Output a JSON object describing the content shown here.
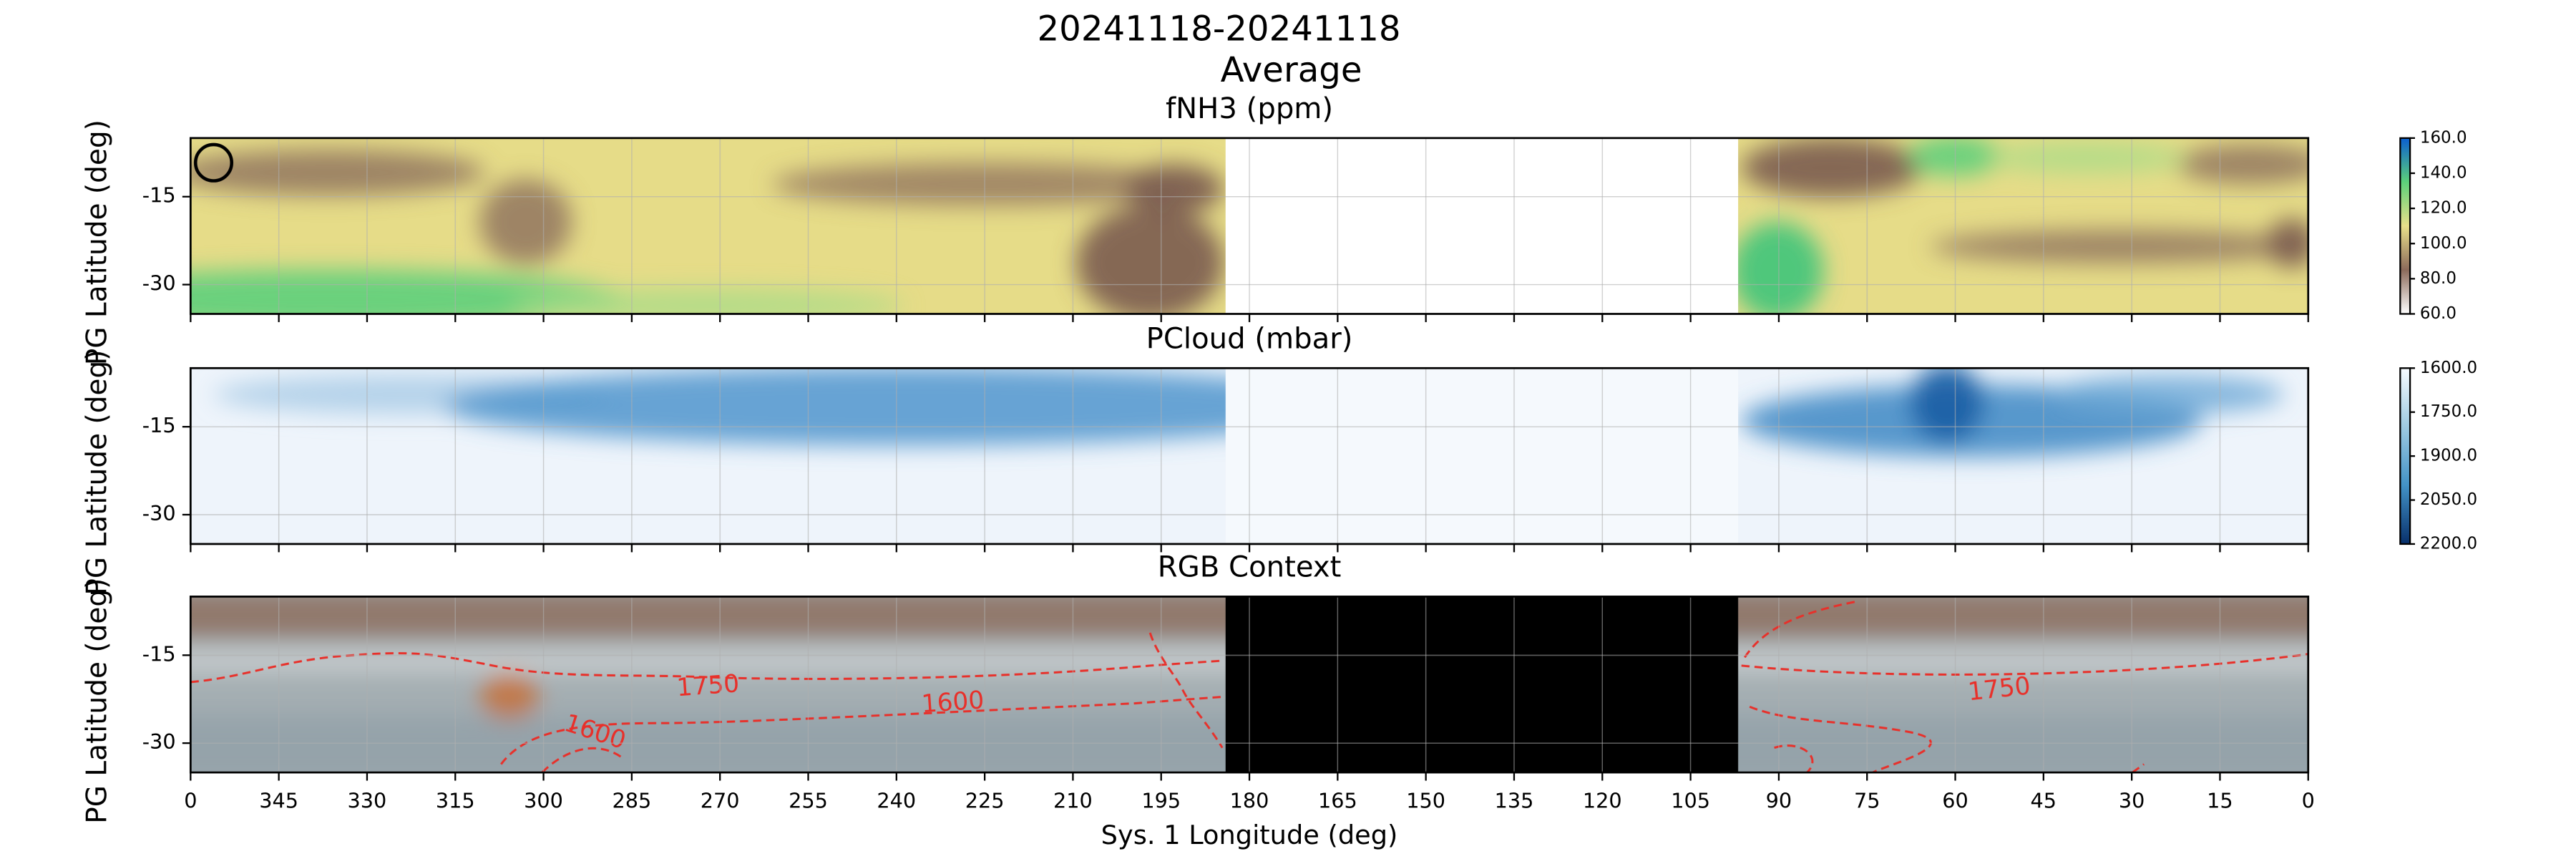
{
  "suptitle": [
    "20241118-20241118",
    "Average"
  ],
  "chart_data": [
    {
      "type": "heatmap",
      "title": "fNH3 (ppm)",
      "y_label": "PG Latitude (deg)",
      "xlim": [
        360,
        0
      ],
      "xticks": [
        {
          "value": 360,
          "label": "0"
        },
        345,
        330,
        315,
        300,
        285,
        270,
        255,
        240,
        225,
        210,
        195,
        180,
        165,
        150,
        135,
        120,
        105,
        90,
        75,
        60,
        45,
        30,
        15,
        0
      ],
      "ylim": [
        -35,
        -5
      ],
      "yticks": [
        -15,
        -30
      ],
      "grid": true,
      "colorbar": {
        "lim": [
          60,
          160
        ],
        "ticks": [
          {
            "value": 60,
            "label": "60.0"
          },
          {
            "value": 80,
            "label": "80.0"
          },
          {
            "value": 100,
            "label": "100.0"
          },
          {
            "value": 120,
            "label": "120.0"
          },
          {
            "value": 140,
            "label": "140.0"
          },
          {
            "value": 160,
            "label": "160.0"
          }
        ],
        "colors": [
          "#ffffff",
          "#8c6a5a",
          "#e8e08a",
          "#5cd07a",
          "#0b5fd0"
        ]
      }
    },
    {
      "type": "heatmap",
      "title": "PCloud (mbar)",
      "y_label": "PG Latitude (deg)",
      "xlim": [
        360,
        0
      ],
      "xticks": [
        {
          "value": 360,
          "label": "0"
        },
        345,
        330,
        315,
        300,
        285,
        270,
        255,
        240,
        225,
        210,
        195,
        180,
        165,
        150,
        135,
        120,
        105,
        90,
        75,
        60,
        45,
        30,
        15,
        0
      ],
      "ylim": [
        -35,
        -5
      ],
      "yticks": [
        -15,
        -30
      ],
      "grid": true,
      "colorbar": {
        "lim": [
          1600,
          2200
        ],
        "reversed": true,
        "ticks": [
          {
            "value": 1600,
            "label": "1600.0"
          },
          {
            "value": 1750,
            "label": "1750.0"
          },
          {
            "value": 1900,
            "label": "1900.0"
          },
          {
            "value": 2050,
            "label": "2050.0"
          },
          {
            "value": 2200,
            "label": "2200.0"
          }
        ],
        "colors": [
          "#f7fbff",
          "#9ecae1",
          "#4292c6",
          "#08306b"
        ]
      }
    },
    {
      "type": "heatmap",
      "title": "RGB Context",
      "y_label": "PG Latitude (deg)",
      "x_label": "Sys. 1 Longitude (deg)",
      "xlim": [
        360,
        0
      ],
      "xticks": [
        {
          "value": 360,
          "label": "0"
        },
        345,
        330,
        315,
        300,
        285,
        270,
        255,
        240,
        225,
        210,
        195,
        180,
        165,
        150,
        135,
        120,
        105,
        90,
        75,
        60,
        45,
        30,
        15,
        0
      ],
      "ylim": [
        -35,
        -5
      ],
      "yticks": [
        -15,
        -30
      ],
      "grid": true,
      "contour_labels": [
        "1750",
        "1600",
        "1600",
        "1750"
      ]
    }
  ]
}
